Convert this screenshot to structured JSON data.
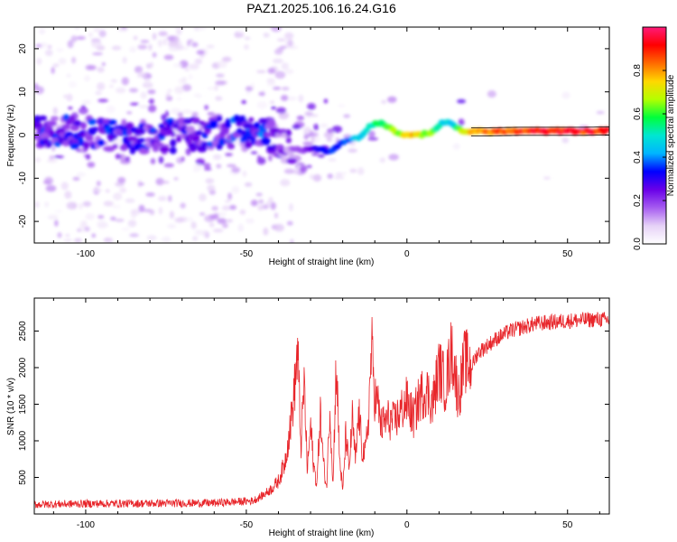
{
  "title": "PAZ1.2025.106.16.24.G16",
  "colors": {
    "snr_line": "#e8262b",
    "spectral_colormap": [
      "#ffffff",
      "#e6d2f7",
      "#a65cf0",
      "#6a00e8",
      "#0000ff",
      "#00b4ff",
      "#00e6d2",
      "#00ff3c",
      "#b4ff00",
      "#ffd700",
      "#ff6a00",
      "#ff0000",
      "#ff1a7a"
    ]
  },
  "chart_data": [
    {
      "type": "heatmap",
      "xlabel": "Height of straight line (km)",
      "ylabel": "Frequency (Hz)",
      "xlim": [
        -116,
        63
      ],
      "ylim": [
        -25,
        25
      ],
      "xticks": [
        -100,
        -50,
        0,
        50
      ],
      "yticks": [
        -20,
        -10,
        0,
        10,
        20
      ],
      "colorbar": {
        "label": "Normalized spectral amplitude",
        "range": [
          0,
          1
        ],
        "ticks": [
          "0.0",
          "0.2",
          "0.4",
          "0.6",
          "0.8"
        ],
        "tick_values": [
          0,
          0.2,
          0.4,
          0.6,
          0.8
        ]
      },
      "ridge": {
        "x": [
          -116,
          -100,
          -80,
          -60,
          -45,
          -38,
          -33,
          -28,
          -24,
          -20,
          -15,
          -10,
          -7,
          -4,
          -1,
          2,
          5,
          8,
          11,
          14,
          17,
          20,
          25,
          35,
          45,
          55,
          63
        ],
        "frequency": [
          1.0,
          0.5,
          -0.5,
          0.5,
          1.0,
          -2.5,
          -3.5,
          -3.0,
          -4.0,
          -1.5,
          -0.5,
          3.0,
          2.5,
          1.0,
          0.0,
          -0.2,
          0.2,
          0.8,
          3.0,
          2.6,
          1.0,
          0.8,
          0.8,
          0.9,
          0.9,
          0.9,
          1.0
        ],
        "amplitude": [
          0.28,
          0.3,
          0.28,
          0.3,
          0.32,
          0.2,
          0.18,
          0.3,
          0.35,
          0.35,
          0.45,
          0.55,
          0.6,
          0.65,
          0.72,
          0.78,
          0.68,
          0.62,
          0.5,
          0.45,
          0.7,
          0.82,
          0.85,
          0.9,
          0.92,
          0.92,
          0.9
        ]
      }
    },
    {
      "type": "line",
      "xlabel": "Height of straight line (km)",
      "ylabel": "SNR (10 * v/v)",
      "xlim": [
        -116,
        63
      ],
      "ylim": [
        0,
        2950
      ],
      "xticks": [
        -100,
        -50,
        0,
        50
      ],
      "yticks": [
        500,
        1000,
        1500,
        2000,
        2500
      ],
      "series": [
        {
          "x": [
            -116,
            -100,
            -80,
            -60,
            -48,
            -45,
            -42,
            -40,
            -38,
            -36,
            -35,
            -34,
            -33,
            -32,
            -31,
            -30,
            -29,
            -28,
            -27,
            -26,
            -25,
            -24,
            -23,
            -22,
            -21,
            -20,
            -19,
            -18,
            -17,
            -16,
            -15,
            -14,
            -13,
            -12,
            -11,
            -10,
            -9,
            -8,
            -6,
            -4,
            -2,
            0,
            2,
            4,
            6,
            8,
            10,
            12,
            14,
            16,
            18,
            20,
            22,
            25,
            28,
            32,
            36,
            40,
            45,
            50,
            55,
            60,
            63
          ],
          "y": [
            130,
            140,
            145,
            150,
            180,
            250,
            350,
            450,
            700,
            1300,
            1700,
            2250,
            900,
            1800,
            600,
            1200,
            650,
            400,
            1400,
            700,
            350,
            1500,
            400,
            2100,
            800,
            300,
            1100,
            600,
            1300,
            700,
            1400,
            900,
            800,
            1300,
            2300,
            1600,
            1500,
            1200,
            1300,
            1250,
            1400,
            1550,
            1300,
            1600,
            1700,
            1500,
            2000,
            1750,
            2250,
            1600,
            2100,
            2000,
            2200,
            2300,
            2400,
            2500,
            2550,
            2600,
            2620,
            2640,
            2650,
            2660,
            2650
          ]
        }
      ]
    }
  ]
}
